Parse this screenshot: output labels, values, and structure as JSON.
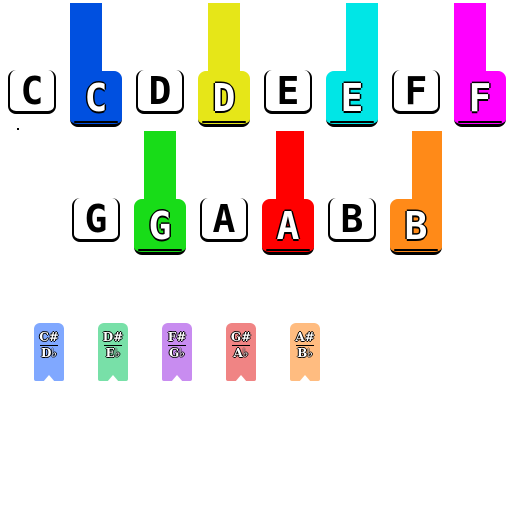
{
  "natural_keys": [
    {
      "label": "C",
      "style": "white"
    },
    {
      "label": "C",
      "style": "color",
      "color": "#0050e0"
    },
    {
      "label": "D",
      "style": "white"
    },
    {
      "label": "D",
      "style": "color",
      "color": "#e6e618"
    },
    {
      "label": "E",
      "style": "white"
    },
    {
      "label": "E",
      "style": "color",
      "color": "#00e6e6"
    },
    {
      "label": "F",
      "style": "white"
    },
    {
      "label": "F",
      "style": "color",
      "color": "#ff00ff"
    },
    {
      "label": "G",
      "style": "white"
    },
    {
      "label": "G",
      "style": "color",
      "color": "#18dc18"
    },
    {
      "label": "A",
      "style": "white"
    },
    {
      "label": "A",
      "style": "color",
      "color": "#ff0000"
    },
    {
      "label": "B",
      "style": "white"
    },
    {
      "label": "B",
      "style": "color",
      "color": "#ff8a18"
    }
  ],
  "sharp_keys": [
    {
      "sharp": "C#",
      "flat": "D♭",
      "color": "#80a8ff"
    },
    {
      "sharp": "D#",
      "flat": "E♭",
      "color": "#78e0a8"
    },
    {
      "sharp": "F#",
      "flat": "G♭",
      "color": "#c88cf0"
    },
    {
      "sharp": "G#",
      "flat": "A♭",
      "color": "#f08484"
    },
    {
      "sharp": "A#",
      "flat": "B♭",
      "color": "#ffbc80"
    }
  ]
}
